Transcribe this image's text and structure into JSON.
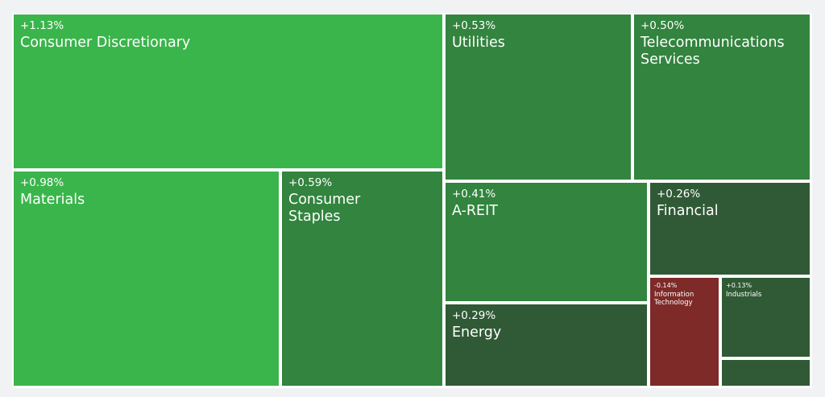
{
  "chart_data": {
    "type": "treemap",
    "cells": [
      {
        "name": "Consumer Discretionary",
        "change": "+1.13%",
        "value": 1.13,
        "color": "#3ab54b"
      },
      {
        "name": "Materials",
        "change": "+0.98%",
        "value": 0.98,
        "color": "#3ab54b"
      },
      {
        "name": "Consumer Staples",
        "change": "+0.59%",
        "value": 0.59,
        "color": "#32843e"
      },
      {
        "name": "Utilities",
        "change": "+0.53%",
        "value": 0.53,
        "color": "#32843e"
      },
      {
        "name": "Telecommunications Services",
        "change": "+0.50%",
        "value": 0.5,
        "color": "#32843e"
      },
      {
        "name": "A-REIT",
        "change": "+0.41%",
        "value": 0.41,
        "color": "#32843e"
      },
      {
        "name": "Energy",
        "change": "+0.29%",
        "value": 0.29,
        "color": "#305a35"
      },
      {
        "name": "Financial",
        "change": "+0.26%",
        "value": 0.26,
        "color": "#305a35"
      },
      {
        "name": "Information Technology",
        "change": "-0.14%",
        "value": -0.14,
        "color": "#7d2a28"
      },
      {
        "name": "Industrials",
        "change": "+0.13%",
        "value": 0.13,
        "color": "#305a35"
      },
      {
        "name": "",
        "change": "",
        "value": null,
        "color": "#305a35"
      }
    ]
  }
}
